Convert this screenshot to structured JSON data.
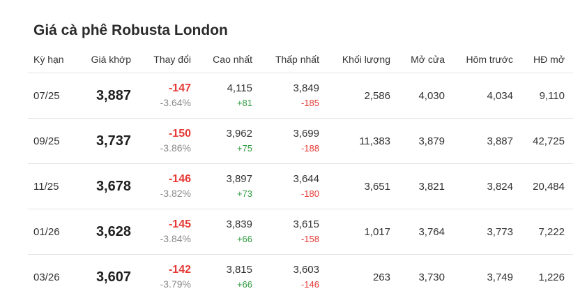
{
  "title": "Giá cà phê Robusta London",
  "headers": [
    "Kỳ hạn",
    "Giá khớp",
    "Thay đổi",
    "Cao nhất",
    "Thấp nhất",
    "Khối lượng",
    "Mở cửa",
    "Hôm trước",
    "HĐ mở"
  ],
  "rows": [
    {
      "term": "07/25",
      "price": "3,887",
      "change": "-147",
      "change_pct": "-3.64%",
      "high": "4,115",
      "high_diff": "+81",
      "low": "3,849",
      "low_diff": "-185",
      "volume": "2,586",
      "open": "4,030",
      "prev": "4,034",
      "oi": "9,110"
    },
    {
      "term": "09/25",
      "price": "3,737",
      "change": "-150",
      "change_pct": "-3.86%",
      "high": "3,962",
      "high_diff": "+75",
      "low": "3,699",
      "low_diff": "-188",
      "volume": "11,383",
      "open": "3,879",
      "prev": "3,887",
      "oi": "42,725"
    },
    {
      "term": "11/25",
      "price": "3,678",
      "change": "-146",
      "change_pct": "-3.82%",
      "high": "3,897",
      "high_diff": "+73",
      "low": "3,644",
      "low_diff": "-180",
      "volume": "3,651",
      "open": "3,821",
      "prev": "3,824",
      "oi": "20,484"
    },
    {
      "term": "01/26",
      "price": "3,628",
      "change": "-145",
      "change_pct": "-3.84%",
      "high": "3,839",
      "high_diff": "+66",
      "low": "3,615",
      "low_diff": "-158",
      "volume": "1,017",
      "open": "3,764",
      "prev": "3,773",
      "oi": "7,222"
    },
    {
      "term": "03/26",
      "price": "3,607",
      "change": "-142",
      "change_pct": "-3.79%",
      "high": "3,815",
      "high_diff": "+66",
      "low": "3,603",
      "low_diff": "-146",
      "volume": "263",
      "open": "3,730",
      "prev": "3,749",
      "oi": "1,226"
    }
  ],
  "colors": {
    "negative": "#e53935",
    "positive": "#2e9a3e",
    "muted": "#8a8a8a",
    "divider": "#e3e3e3"
  }
}
